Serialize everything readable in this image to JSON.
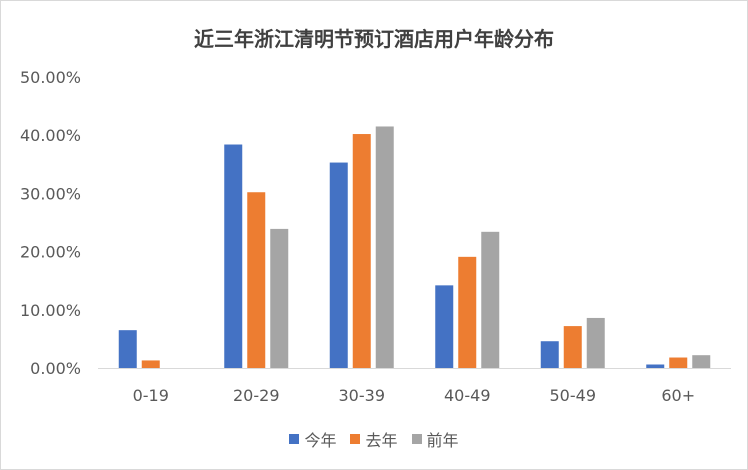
{
  "chart_data": {
    "type": "bar",
    "title": "近三年浙江清明节预订酒店用户年龄分布",
    "categories": [
      "0-19",
      "20-29",
      "30-39",
      "40-49",
      "50-49",
      "60+"
    ],
    "series": [
      {
        "name": "今年",
        "color": "#4472c4",
        "values": [
          6.5,
          38.4,
          35.3,
          14.2,
          4.6,
          0.6
        ]
      },
      {
        "name": "去年",
        "color": "#ed7d31",
        "values": [
          1.3,
          30.2,
          40.2,
          19.1,
          7.2,
          1.8
        ]
      },
      {
        "name": "前年",
        "color": "#a5a5a5",
        "values": [
          0.0,
          23.9,
          41.5,
          23.4,
          8.6,
          2.2
        ]
      }
    ],
    "ylim": [
      0,
      50
    ],
    "yticks": [
      "0.00%",
      "10.00%",
      "20.00%",
      "30.00%",
      "40.00%",
      "50.00%"
    ],
    "grid": false,
    "legend_position": "bottom"
  }
}
